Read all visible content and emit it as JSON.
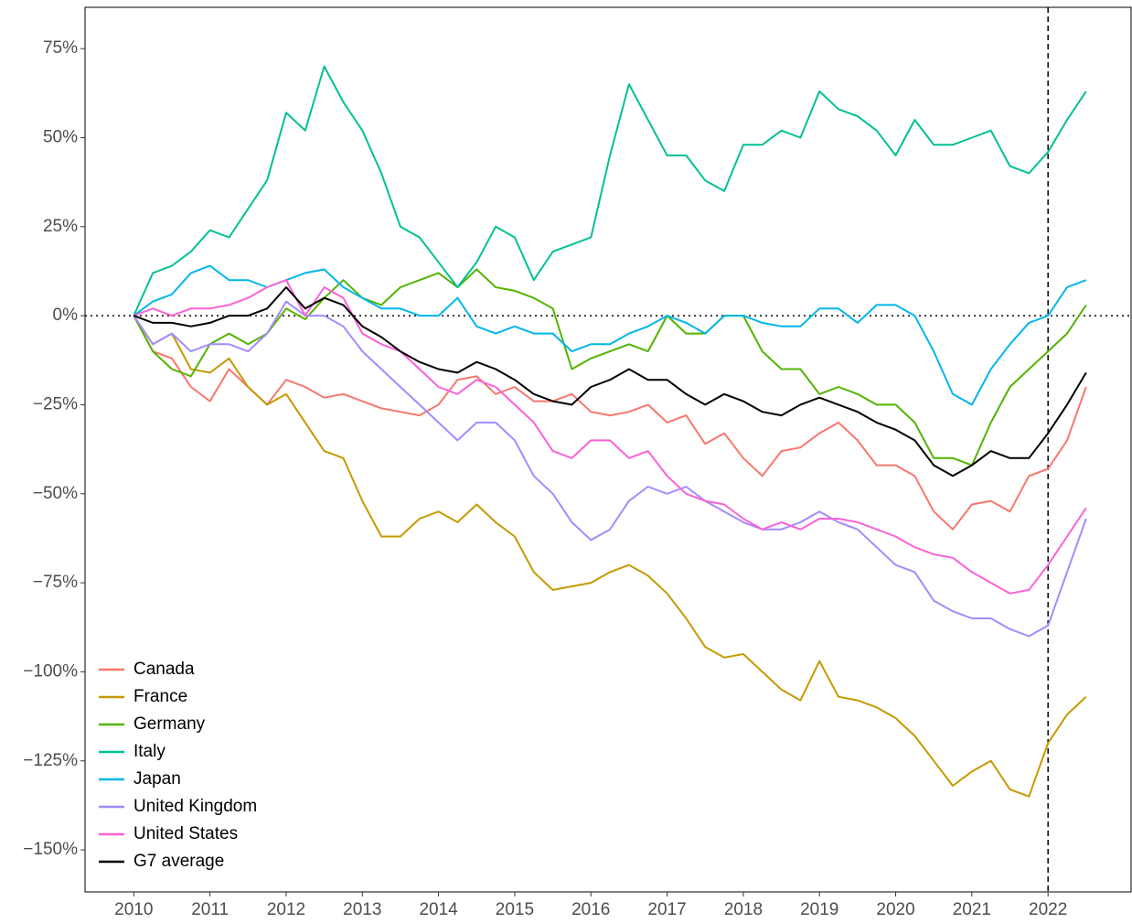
{
  "chart_data": {
    "type": "line",
    "x": [
      2010,
      2010.25,
      2010.5,
      2010.75,
      2011,
      2011.25,
      2011.5,
      2011.75,
      2012,
      2012.25,
      2012.5,
      2012.75,
      2013,
      2013.25,
      2013.5,
      2013.75,
      2014,
      2014.25,
      2014.5,
      2014.75,
      2015,
      2015.25,
      2015.5,
      2015.75,
      2016,
      2016.25,
      2016.5,
      2016.75,
      2017,
      2017.25,
      2017.5,
      2017.75,
      2018,
      2018.25,
      2018.5,
      2018.75,
      2019,
      2019.25,
      2019.5,
      2019.75,
      2020,
      2020.25,
      2020.5,
      2020.75,
      2021,
      2021.25,
      2021.5,
      2021.75,
      2022,
      2022.25,
      2022.5
    ],
    "series": [
      {
        "name": "Canada",
        "color": "#F8766D",
        "values": [
          0,
          -10,
          -12,
          -20,
          -24,
          -15,
          -20,
          -25,
          -18,
          -20,
          -23,
          -22,
          -24,
          -26,
          -27,
          -28,
          -25,
          -18,
          -17,
          -22,
          -20,
          -24,
          -24,
          -22,
          -27,
          -28,
          -27,
          -25,
          -30,
          -28,
          -36,
          -33,
          -40,
          -45,
          -38,
          -37,
          -33,
          -30,
          -35,
          -42,
          -42,
          -45,
          -55,
          -60,
          -53,
          -52,
          -55,
          -45,
          -43,
          -35,
          -20
        ]
      },
      {
        "name": "France",
        "color": "#C49A00",
        "values": [
          0,
          -8,
          -5,
          -15,
          -16,
          -12,
          -20,
          -25,
          -22,
          -30,
          -38,
          -40,
          -52,
          -62,
          -62,
          -57,
          -55,
          -58,
          -53,
          -58,
          -62,
          -72,
          -77,
          -76,
          -75,
          -72,
          -70,
          -73,
          -78,
          -85,
          -93,
          -96,
          -95,
          -100,
          -105,
          -108,
          -97,
          -107,
          -108,
          -110,
          -113,
          -118,
          -125,
          -132,
          -128,
          -125,
          -133,
          -135,
          -120,
          -112,
          -107
        ]
      },
      {
        "name": "Germany",
        "color": "#53B400",
        "values": [
          0,
          -10,
          -15,
          -17,
          -8,
          -5,
          -8,
          -5,
          2,
          -1,
          5,
          10,
          5,
          3,
          8,
          10,
          12,
          8,
          13,
          8,
          7,
          5,
          2,
          -15,
          -12,
          -10,
          -8,
          -10,
          0,
          -5,
          -5,
          0,
          0,
          -10,
          -15,
          -15,
          -22,
          -20,
          -22,
          -25,
          -25,
          -30,
          -40,
          -40,
          -42,
          -30,
          -20,
          -15,
          -10,
          -5,
          3
        ]
      },
      {
        "name": "Italy",
        "color": "#00C094",
        "values": [
          0,
          12,
          14,
          18,
          24,
          22,
          30,
          38,
          57,
          52,
          70,
          60,
          52,
          40,
          25,
          22,
          15,
          8,
          15,
          25,
          22,
          10,
          18,
          20,
          22,
          45,
          65,
          55,
          45,
          45,
          38,
          35,
          48,
          48,
          52,
          50,
          63,
          58,
          56,
          52,
          45,
          55,
          48,
          48,
          50,
          52,
          42,
          40,
          46,
          55,
          63
        ]
      },
      {
        "name": "Japan",
        "color": "#00B6EB",
        "values": [
          0,
          4,
          6,
          12,
          14,
          10,
          10,
          8,
          10,
          12,
          13,
          8,
          5,
          2,
          2,
          0,
          0,
          5,
          -3,
          -5,
          -3,
          -5,
          -5,
          -10,
          -8,
          -8,
          -5,
          -3,
          0,
          -2,
          -5,
          0,
          0,
          -2,
          -3,
          -3,
          2,
          2,
          -2,
          3,
          3,
          0,
          -10,
          -22,
          -25,
          -15,
          -8,
          -2,
          0,
          8,
          10
        ]
      },
      {
        "name": "United Kingdom",
        "color": "#A58AFF",
        "values": [
          0,
          -8,
          -5,
          -10,
          -8,
          -8,
          -10,
          -5,
          4,
          0,
          0,
          -3,
          -10,
          -15,
          -20,
          -25,
          -30,
          -35,
          -30,
          -30,
          -35,
          -45,
          -50,
          -58,
          -63,
          -60,
          -52,
          -48,
          -50,
          -48,
          -52,
          -55,
          -58,
          -60,
          -60,
          -58,
          -55,
          -58,
          -60,
          -65,
          -70,
          -72,
          -80,
          -83,
          -85,
          -85,
          -88,
          -90,
          -87,
          -72,
          -57
        ]
      },
      {
        "name": "United States",
        "color": "#FB61D7",
        "values": [
          0,
          2,
          0,
          2,
          2,
          3,
          5,
          8,
          10,
          0,
          8,
          5,
          -5,
          -8,
          -10,
          -15,
          -20,
          -22,
          -18,
          -20,
          -25,
          -30,
          -38,
          -40,
          -35,
          -35,
          -40,
          -38,
          -45,
          -50,
          -52,
          -53,
          -57,
          -60,
          -58,
          -60,
          -57,
          -57,
          -58,
          -60,
          -62,
          -65,
          -67,
          -68,
          -72,
          -75,
          -78,
          -77,
          -70,
          -62,
          -54
        ]
      },
      {
        "name": "G7 average",
        "color": "#000000",
        "values": [
          0,
          -2,
          -2,
          -3,
          -2,
          0,
          0,
          2,
          8,
          2,
          5,
          3,
          -3,
          -6,
          -10,
          -13,
          -15,
          -16,
          -13,
          -15,
          -18,
          -22,
          -24,
          -25,
          -20,
          -18,
          -15,
          -18,
          -18,
          -22,
          -25,
          -22,
          -24,
          -27,
          -28,
          -25,
          -23,
          -25,
          -27,
          -30,
          -32,
          -35,
          -42,
          -45,
          -42,
          -38,
          -40,
          -40,
          -33,
          -25,
          -16
        ]
      }
    ],
    "xlim": [
      2009.36,
      2023.09
    ],
    "xticks": [
      2010,
      2011,
      2012,
      2013,
      2014,
      2015,
      2016,
      2017,
      2018,
      2019,
      2020,
      2021,
      2022
    ],
    "ylim": [
      -161.8,
      86.6
    ],
    "yticks": [
      {
        "value": -150,
        "label": "−150%"
      },
      {
        "value": -125,
        "label": "−125%"
      },
      {
        "value": -100,
        "label": "−100%"
      },
      {
        "value": -75,
        "label": "−75%"
      },
      {
        "value": -50,
        "label": "−50%"
      },
      {
        "value": -25,
        "label": "−25%"
      },
      {
        "value": 0,
        "label": "0%"
      },
      {
        "value": 25,
        "label": "25%"
      },
      {
        "value": 50,
        "label": "50%"
      },
      {
        "value": 75,
        "label": "75%"
      }
    ],
    "hline": 0,
    "vline": 2022,
    "legend": "bottom-left",
    "grid": false
  }
}
